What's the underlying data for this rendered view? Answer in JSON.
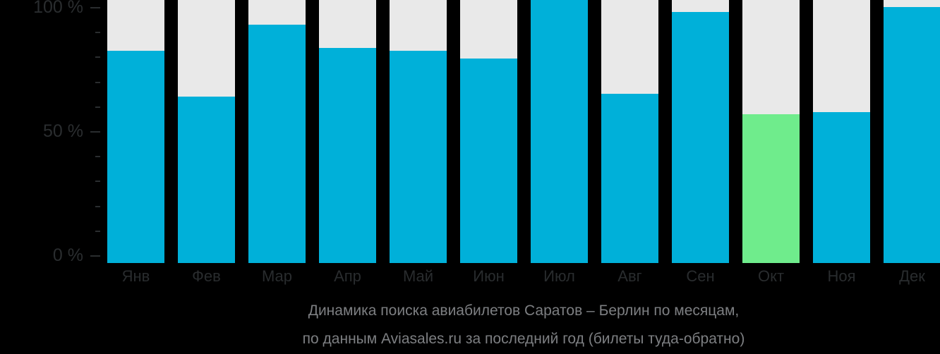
{
  "page": {
    "background_color": "#000000"
  },
  "chart_data": {
    "type": "bar",
    "categories": [
      "Янв",
      "Фев",
      "Мар",
      "Апр",
      "Май",
      "Июн",
      "Июл",
      "Авг",
      "Сен",
      "Окт",
      "Ноя",
      "Дек"
    ],
    "values": [
      83,
      65,
      93,
      84,
      83,
      80,
      100,
      66,
      98,
      58,
      59,
      100
    ],
    "title": "Динамика поиска авиабилетов Саратов – Берлин по месяцам,",
    "subtitle": "по данным Aviasales.ru за последний год (билеты туда-обратно)",
    "xlabel": "",
    "ylabel": "",
    "ylim": [
      0,
      100
    ],
    "ytick_labeled_values": [
      0,
      50,
      100
    ],
    "ytick_minor_step": 10,
    "grid": false,
    "legend": false,
    "bar_color": "#00b0d9",
    "track_color": "#e9e9e9",
    "highlight": {
      "month": "Окт",
      "color": "#6fec8c"
    },
    "full_bleed_month": "Июл"
  },
  "y_axis": {
    "labels": [
      {
        "value": 100,
        "text": "100 %"
      },
      {
        "value": 50,
        "text": "50 %"
      },
      {
        "value": 0,
        "text": "0 %"
      }
    ]
  },
  "caption": {
    "line1": "Динамика поиска авиабилетов Саратов – Берлин по месяцам,",
    "line2": "по данным Aviasales.ru за последний год (билеты туда-обратно)"
  }
}
